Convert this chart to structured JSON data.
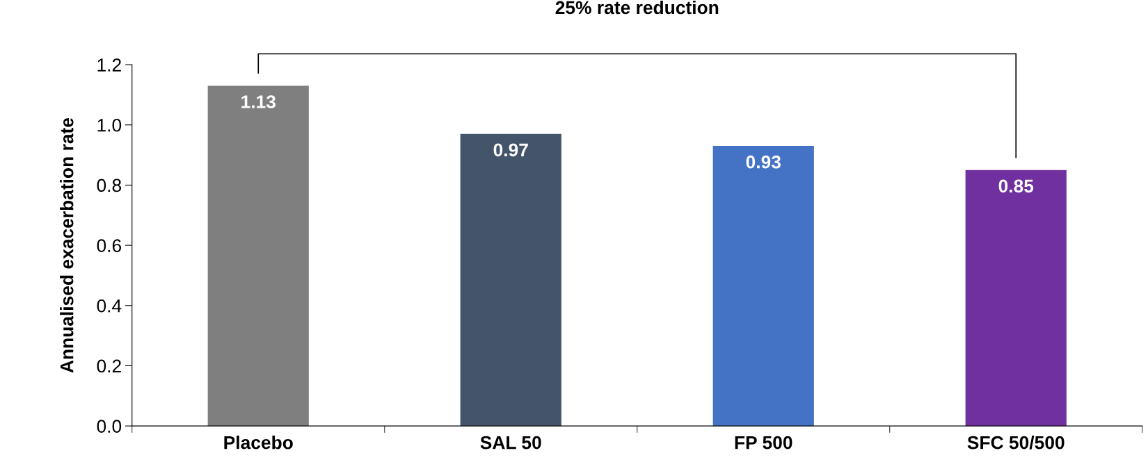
{
  "chart_data": {
    "type": "bar",
    "ylabel": "Annualised exacerbation rate",
    "categories": [
      "Placebo",
      "SAL 50",
      "FP 500",
      "SFC 50/500"
    ],
    "values": [
      1.13,
      0.97,
      0.93,
      0.85
    ],
    "colors": [
      "#7f7f7f",
      "#44546a",
      "#4472c4",
      "#7030a0"
    ],
    "ylim": [
      0,
      1.2
    ],
    "yticks": [
      {
        "value": 0,
        "label": "0.0"
      },
      {
        "value": 0.2,
        "label": "0.2"
      },
      {
        "value": 0.4,
        "label": "0.4"
      },
      {
        "value": 0.6,
        "label": "0.6"
      },
      {
        "value": 0.8,
        "label": "0.8"
      },
      {
        "value": 1.0,
        "label": "1.0"
      },
      {
        "value": 1.2,
        "label": "1.2"
      }
    ],
    "annotations": [
      "25% rate reduction"
    ],
    "data_labels": true,
    "grid": false,
    "legend": false
  }
}
